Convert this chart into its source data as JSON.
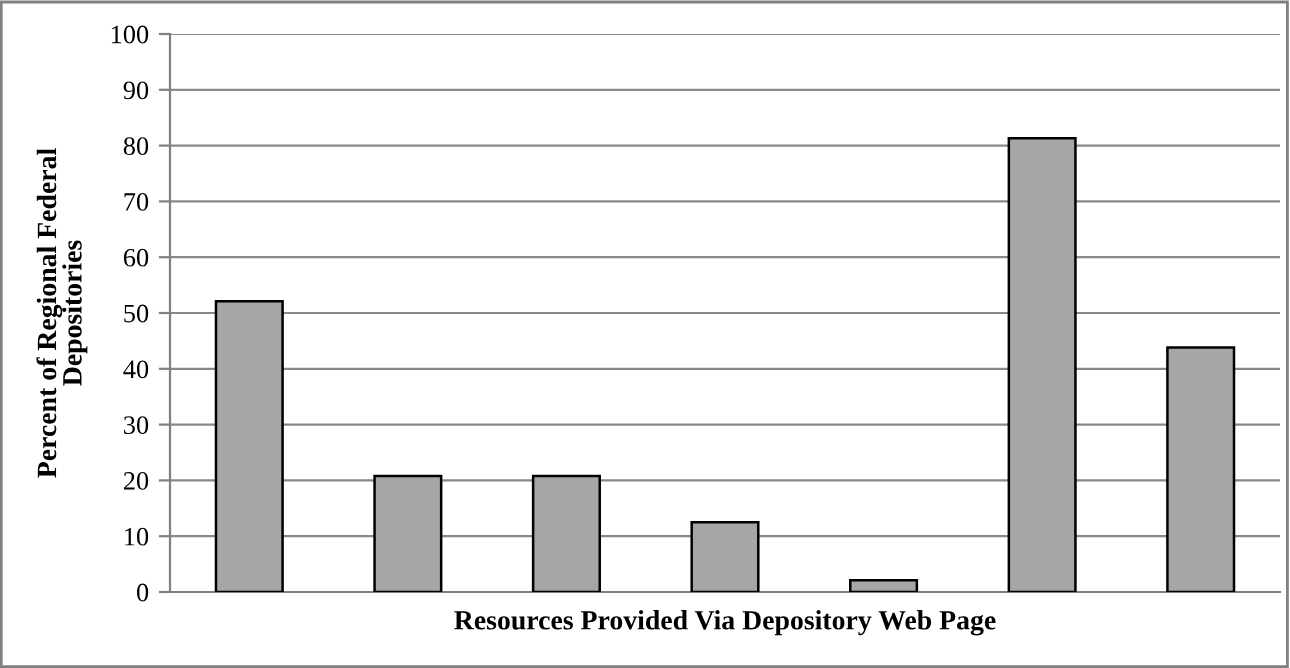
{
  "chart_data": {
    "type": "bar",
    "xlabel": "Resources Provided Via Depository Web Page",
    "ylabel": "Percent of Regional Federal Depositories",
    "categories": [
      null,
      null,
      null,
      null,
      null,
      null,
      null
    ],
    "values": [
      52.1,
      20.8,
      20.8,
      12.5,
      2.1,
      81.3,
      43.8
    ],
    "color": "#a6a6a6",
    "ylim": [
      0,
      100
    ],
    "yticks": [
      0,
      10,
      20,
      30,
      40,
      50,
      60,
      70,
      80,
      90,
      100
    ],
    "grid": "y"
  }
}
